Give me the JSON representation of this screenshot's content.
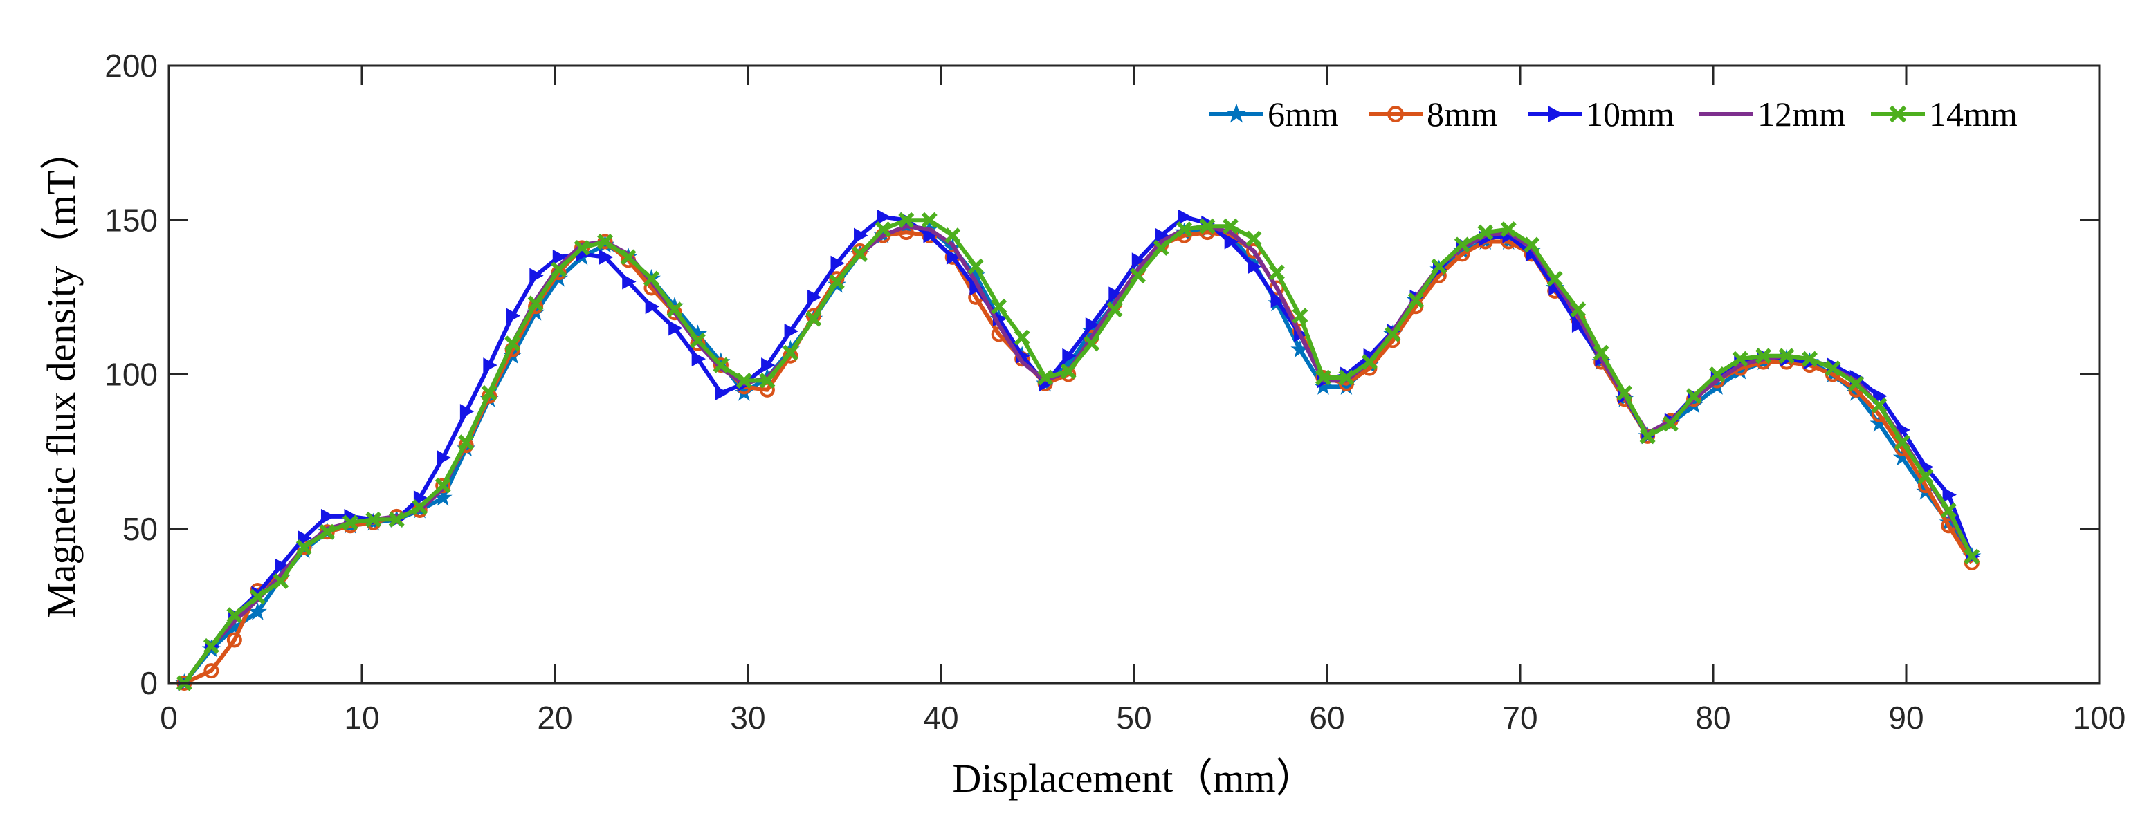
{
  "chart_data": {
    "type": "line",
    "xlabel": "Displacement（mm）",
    "ylabel": "Magnetic flux density（mT）",
    "xlim": [
      0,
      100
    ],
    "ylim": [
      0,
      200
    ],
    "xticks": [
      "0",
      "10",
      "20",
      "30",
      "40",
      "50",
      "60",
      "70",
      "80",
      "90",
      "100"
    ],
    "yticks": [
      "0",
      "50",
      "100",
      "150",
      "200"
    ],
    "legend_position": "top-right",
    "x": [
      0.8,
      2.2,
      3.4,
      4.6,
      5.8,
      7,
      8.2,
      9.4,
      10.6,
      11.8,
      13,
      14.2,
      15.4,
      16.6,
      17.8,
      19,
      20.2,
      21.4,
      22.6,
      23.8,
      25,
      26.2,
      27.4,
      28.6,
      29.8,
      31,
      32.2,
      33.4,
      34.6,
      35.8,
      37,
      38.2,
      39.4,
      40.6,
      41.8,
      43,
      44.2,
      45.4,
      46.6,
      47.8,
      49,
      50.2,
      51.4,
      52.6,
      53.8,
      55,
      56.2,
      57.4,
      58.6,
      59.8,
      61,
      62.2,
      63.4,
      64.6,
      65.8,
      67,
      68.2,
      69.4,
      70.6,
      71.8,
      73,
      74.2,
      75.4,
      76.6,
      77.8,
      79,
      80.2,
      81.4,
      82.6,
      83.8,
      85,
      86.2,
      87.4,
      88.6,
      89.8,
      91,
      92.2,
      93.4
    ],
    "series": [
      {
        "name": "6mm",
        "color": "#0072BD",
        "marker": "star",
        "values": [
          0,
          11,
          18,
          23,
          34,
          43,
          49,
          51,
          52,
          53,
          56,
          60,
          76,
          92,
          106,
          120,
          131,
          138,
          142,
          138,
          131,
          122,
          113,
          104,
          94,
          99,
          108,
          118,
          129,
          139,
          145,
          148,
          147,
          141,
          132,
          118,
          106,
          97,
          103,
          114,
          123,
          133,
          142,
          146,
          147,
          145,
          136,
          123,
          108,
          96,
          96,
          103,
          113,
          124,
          134,
          140,
          143,
          143,
          140,
          128,
          117,
          104,
          92,
          80,
          84,
          90,
          96,
          101,
          104,
          105,
          104,
          100,
          94,
          84,
          73,
          62,
          52,
          41
        ]
      },
      {
        "name": "8mm",
        "color": "#D95319",
        "marker": "circle",
        "values": [
          0,
          4,
          14,
          30,
          35,
          44,
          49,
          51,
          52,
          54,
          56,
          64,
          77,
          93,
          108,
          122,
          133,
          141,
          143,
          137,
          128,
          120,
          110,
          103,
          96,
          95,
          106,
          119,
          131,
          140,
          145,
          146,
          145,
          138,
          125,
          113,
          105,
          97,
          100,
          112,
          123,
          134,
          142,
          145,
          146,
          145,
          140,
          128,
          114,
          99,
          97,
          102,
          111,
          122,
          132,
          139,
          143,
          143,
          139,
          127,
          118,
          104,
          92,
          80,
          85,
          92,
          98,
          102,
          104,
          104,
          103,
          100,
          95,
          87,
          76,
          64,
          51,
          39
        ]
      },
      {
        "name": "10mm",
        "color": "#1414E6",
        "marker": "triangle-right",
        "values": [
          0,
          12,
          22,
          29,
          38,
          47,
          54,
          54,
          53,
          53,
          60,
          73,
          88,
          103,
          119,
          132,
          138,
          139,
          138,
          130,
          122,
          115,
          105,
          94,
          97,
          103,
          114,
          125,
          136,
          145,
          151,
          150,
          145,
          138,
          128,
          118,
          106,
          97,
          106,
          116,
          126,
          137,
          145,
          151,
          149,
          143,
          135,
          124,
          113,
          98,
          100,
          106,
          114,
          125,
          134,
          142,
          144,
          145,
          139,
          128,
          116,
          105,
          93,
          80,
          85,
          93,
          99,
          104,
          106,
          105,
          104,
          103,
          99,
          93,
          82,
          70,
          61,
          41
        ]
      },
      {
        "name": "12mm",
        "color": "#7E2F8E",
        "marker": "none",
        "values": [
          0,
          12,
          20,
          27,
          35,
          44,
          50,
          52,
          53,
          54,
          56,
          63,
          78,
          94,
          110,
          124,
          135,
          142,
          143,
          139,
          130,
          120,
          110,
          102,
          97,
          99,
          107,
          118,
          130,
          139,
          145,
          148,
          147,
          142,
          130,
          116,
          104,
          98,
          101,
          112,
          123,
          134,
          143,
          147,
          148,
          146,
          140,
          128,
          113,
          98,
          98,
          104,
          114,
          125,
          135,
          141,
          145,
          146,
          141,
          130,
          119,
          105,
          93,
          81,
          85,
          92,
          98,
          103,
          105,
          106,
          105,
          102,
          98,
          90,
          79,
          67,
          55,
          41
        ]
      },
      {
        "name": "14mm",
        "color": "#4DAF1E",
        "marker": "x",
        "values": [
          0,
          12,
          22,
          28,
          33,
          44,
          49,
          52,
          53,
          53,
          57,
          64,
          78,
          94,
          110,
          123,
          134,
          141,
          143,
          138,
          131,
          121,
          111,
          103,
          98,
          98,
          107,
          118,
          130,
          139,
          147,
          150,
          150,
          145,
          135,
          122,
          112,
          99,
          101,
          110,
          121,
          132,
          141,
          147,
          148,
          148,
          144,
          133,
          119,
          99,
          99,
          104,
          113,
          124,
          135,
          142,
          146,
          147,
          142,
          131,
          121,
          107,
          94,
          80,
          84,
          93,
          100,
          105,
          106,
          106,
          105,
          102,
          97,
          90,
          78,
          67,
          56,
          41
        ]
      }
    ]
  }
}
